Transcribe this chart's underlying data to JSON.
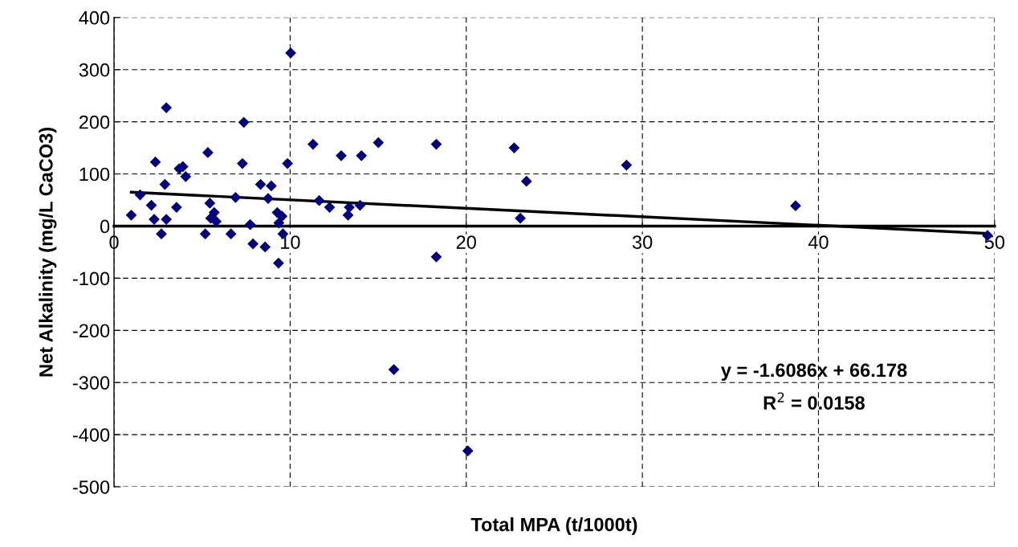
{
  "chart_data": {
    "type": "scatter",
    "xlabel": "Total MPA (t/1000t)",
    "ylabel": "Net Alkalinity (mg/L CaCO3)",
    "xlim": [
      0,
      50
    ],
    "xticks": [
      0,
      10,
      20,
      30,
      40,
      50
    ],
    "ylim": [
      -500,
      400
    ],
    "yticks": [
      -500,
      -400,
      -300,
      -200,
      -100,
      0,
      100,
      200,
      300,
      400
    ],
    "grid": true,
    "marker": "diamond",
    "annotations": [
      "y = -1.6086x + 66.178",
      "R$^{2}$ = 0.0158"
    ],
    "series": [
      {
        "color": "#000080",
        "x": [
          0.98,
          1.48,
          2.12,
          2.35,
          2.28,
          2.97,
          2.69,
          2.89,
          2.97,
          3.55,
          3.7,
          3.91,
          4.07,
          5.18,
          5.33,
          5.44,
          5.49,
          5.69,
          5.8,
          6.64,
          6.9,
          7.29,
          7.37,
          7.73,
          7.89,
          8.32,
          8.58,
          8.75,
          8.93,
          9.27,
          9.54,
          9.36,
          9.34,
          9.59,
          9.85,
          10.03,
          11.3,
          11.65,
          12.24,
          12.9,
          13.29,
          13.36,
          13.97,
          14.05,
          15.01,
          15.89,
          18.3,
          18.3,
          20.09,
          22.72,
          23.42,
          23.07,
          29.1,
          38.7,
          49.6
        ],
        "values": [
          21,
          60,
          40,
          123,
          13,
          13,
          -15,
          80,
          227,
          36,
          110,
          114,
          95,
          -15,
          141,
          44,
          15,
          26,
          9,
          -15,
          55,
          120,
          199,
          3,
          -34,
          80,
          -40,
          53,
          77,
          26,
          19,
          6,
          -71,
          -15,
          120,
          332,
          157,
          49,
          36,
          135,
          21,
          36,
          40,
          135,
          160,
          -275,
          157,
          -59,
          -431,
          150,
          86,
          15,
          117,
          39,
          -18
        ]
      },
      {
        "type": "line",
        "color": "#000000",
        "marker": "none",
        "x": [
          0.98,
          49.6
        ],
        "values": [
          65,
          -14
        ]
      }
    ]
  }
}
